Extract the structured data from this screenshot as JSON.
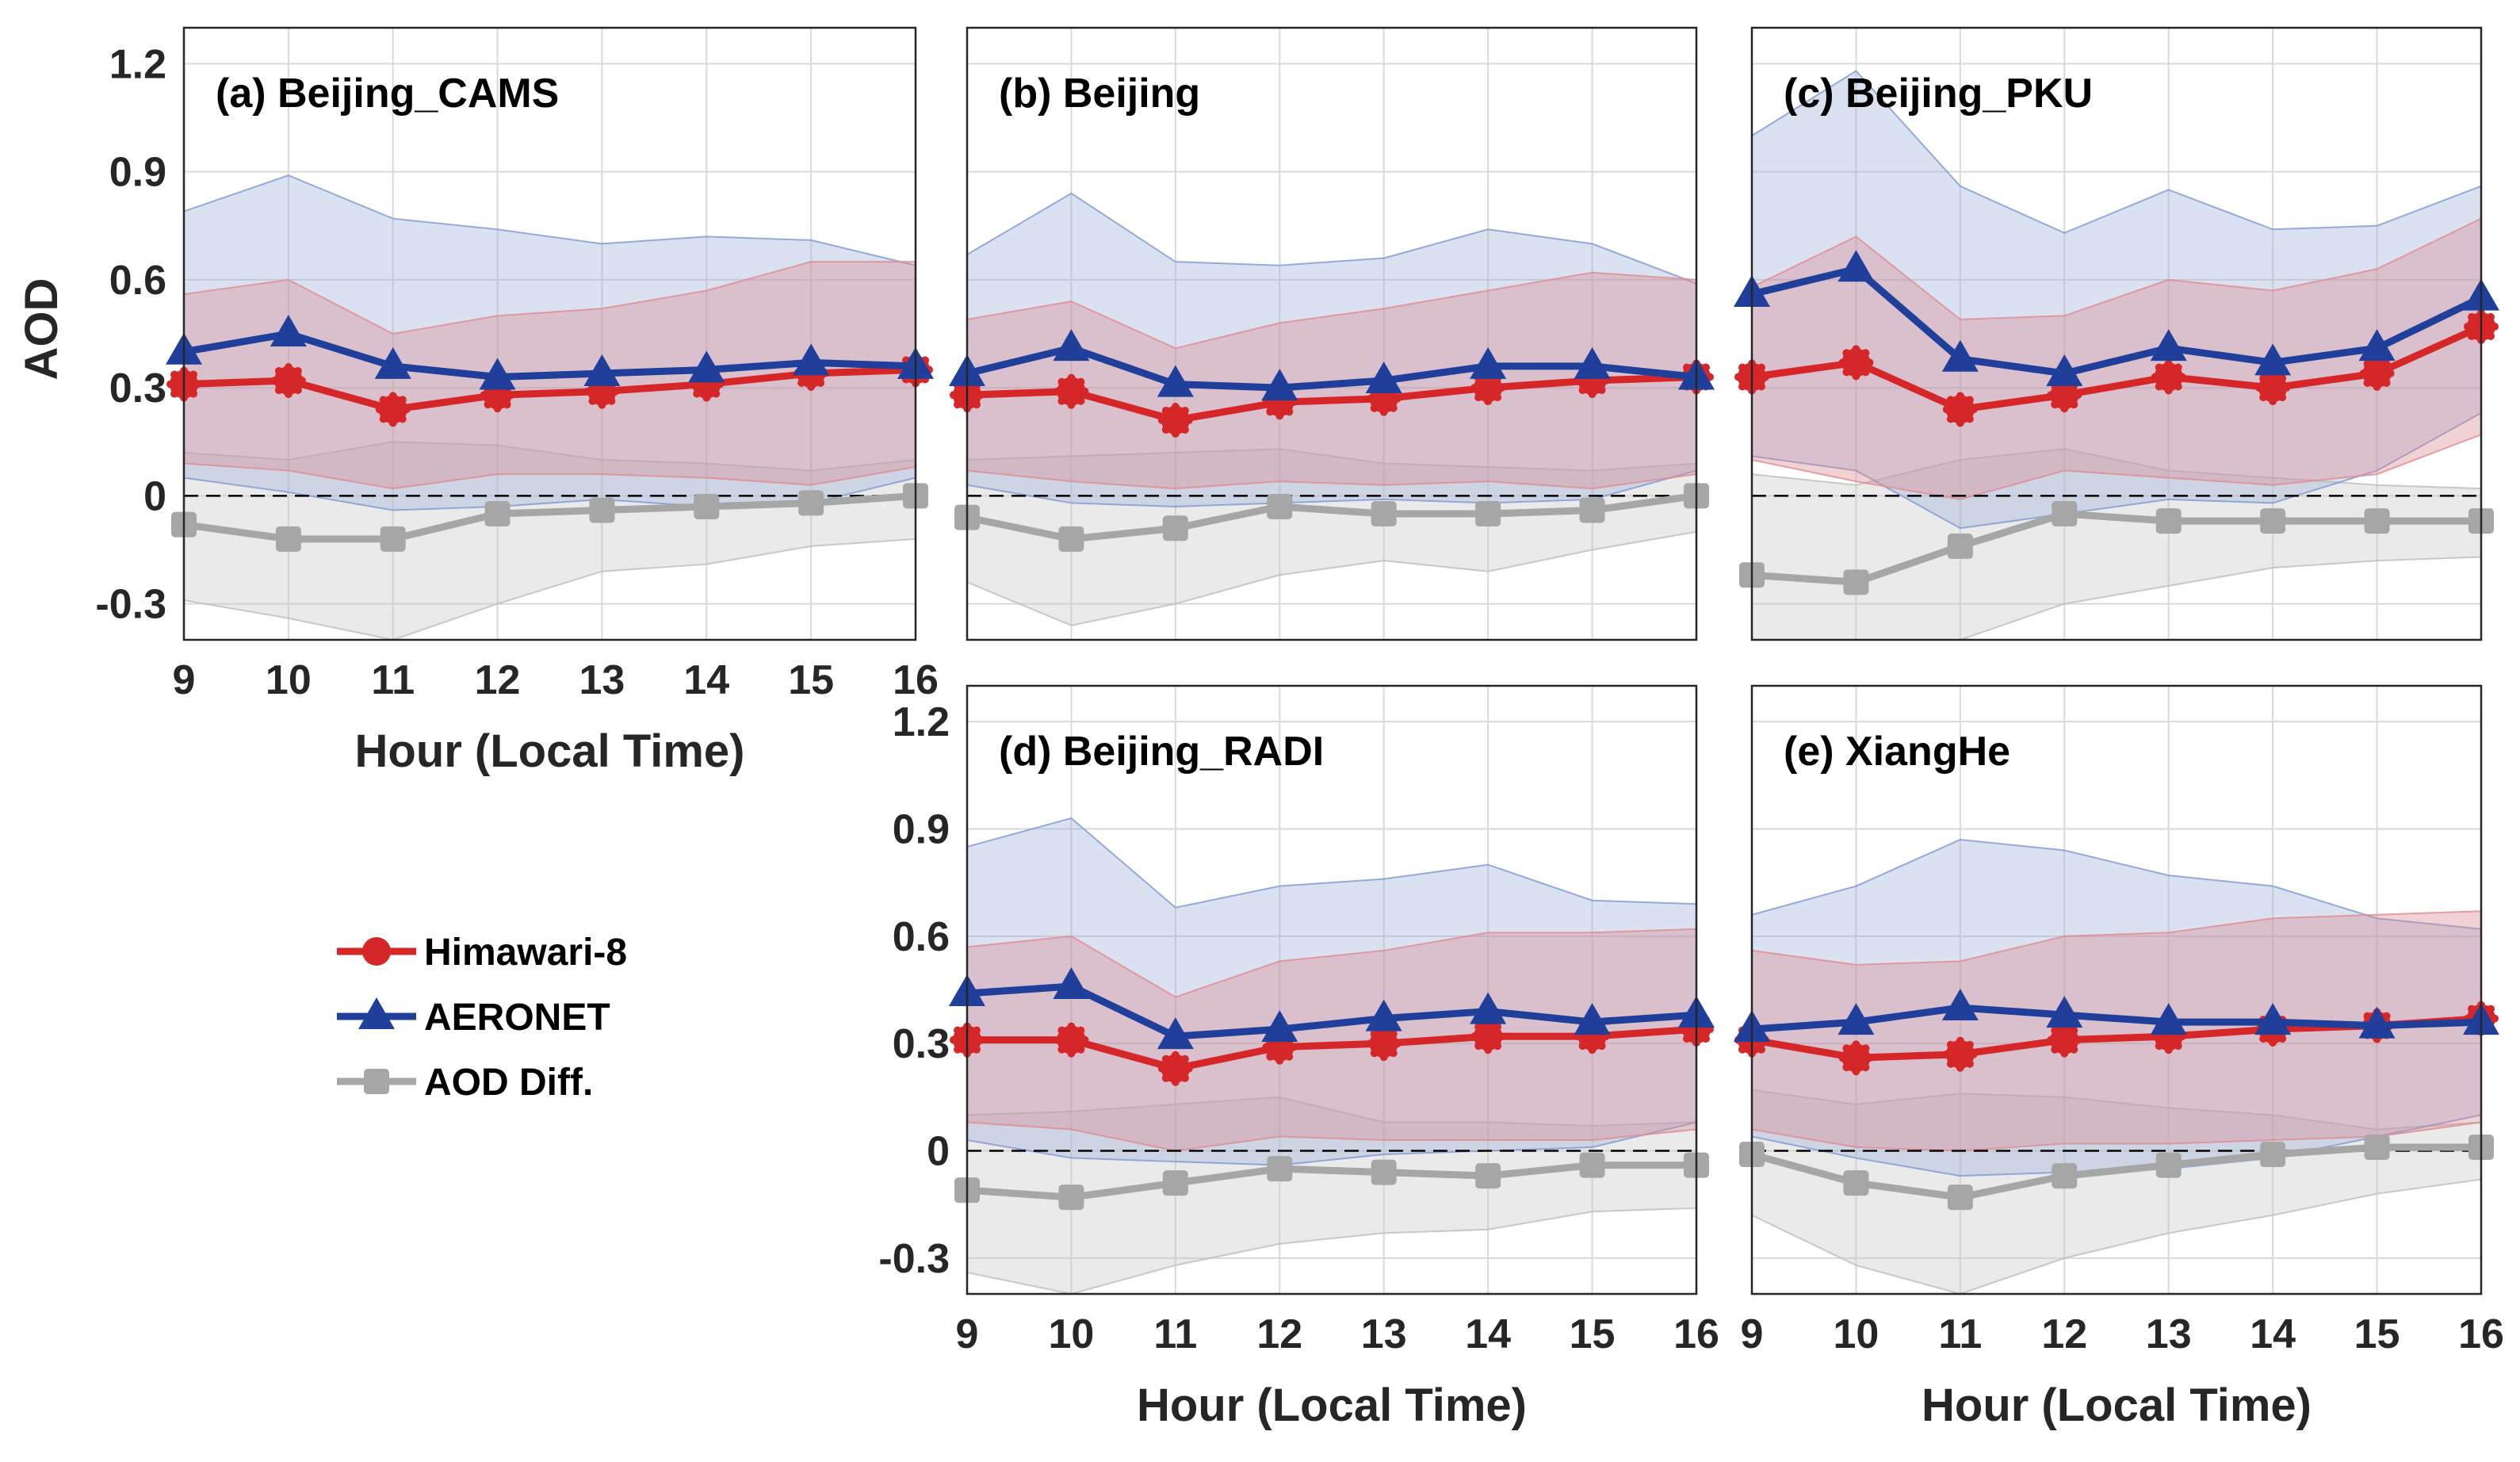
{
  "chart_data": {
    "type": "line",
    "x": [
      9,
      10,
      11,
      12,
      13,
      14,
      15,
      16
    ],
    "xlabel": "Hour (Local Time)",
    "ylabel": "AOD",
    "ylim": [
      -0.4,
      1.3
    ],
    "xlim": [
      9,
      16
    ],
    "xticks": [
      "9",
      "10",
      "11",
      "12",
      "13",
      "14",
      "15",
      "16"
    ],
    "yticks": [
      {
        "value": -0.3,
        "label": "-0.3"
      },
      {
        "value": 0,
        "label": "0"
      },
      {
        "value": 0.3,
        "label": "0.3"
      },
      {
        "value": 0.6,
        "label": "0.6"
      },
      {
        "value": 0.9,
        "label": "0.9"
      },
      {
        "value": 1.2,
        "label": "1.2"
      }
    ],
    "grid": true,
    "reference_line": {
      "y": 0,
      "style": "dashed"
    },
    "colors": {
      "himawari": "#d62728",
      "aeronet": "#1f3f9a",
      "diff": "#a6a6a6",
      "band_himawari": "#d98a8f",
      "band_aeronet": "#9fb3dc",
      "band_diff": "#c8c8c8"
    },
    "legend": [
      {
        "key": "himawari",
        "label": "Himawari-8",
        "marker": "circle"
      },
      {
        "key": "aeronet",
        "label": "AERONET",
        "marker": "triangle"
      },
      {
        "key": "diff",
        "label": "AOD Diff.",
        "marker": "square"
      }
    ],
    "panels": [
      {
        "title": "(a) Beijing_CAMS",
        "himawari": [
          0.31,
          0.32,
          0.24,
          0.28,
          0.29,
          0.31,
          0.34,
          0.35
        ],
        "aeronet": [
          0.4,
          0.45,
          0.36,
          0.33,
          0.34,
          0.35,
          0.37,
          0.36
        ],
        "diff": [
          -0.08,
          -0.12,
          -0.12,
          -0.05,
          -0.04,
          -0.03,
          -0.02,
          0.0
        ],
        "band_himawari": {
          "upper": [
            0.56,
            0.6,
            0.45,
            0.5,
            0.52,
            0.57,
            0.65,
            0.65
          ],
          "lower": [
            0.09,
            0.07,
            0.02,
            0.06,
            0.06,
            0.05,
            0.03,
            0.08
          ]
        },
        "band_aeronet": {
          "upper": [
            0.79,
            0.89,
            0.77,
            0.74,
            0.7,
            0.72,
            0.71,
            0.64
          ],
          "lower": [
            0.05,
            0.01,
            -0.04,
            -0.03,
            -0.01,
            -0.03,
            -0.02,
            0.05
          ]
        },
        "band_diff": {
          "upper": [
            0.12,
            0.1,
            0.15,
            0.14,
            0.1,
            0.09,
            0.07,
            0.1
          ],
          "lower": [
            -0.29,
            -0.34,
            -0.4,
            -0.3,
            -0.21,
            -0.19,
            -0.14,
            -0.12
          ]
        }
      },
      {
        "title": "(b) Beijing",
        "himawari": [
          0.28,
          0.29,
          0.21,
          0.26,
          0.27,
          0.3,
          0.32,
          0.33
        ],
        "aeronet": [
          0.34,
          0.41,
          0.31,
          0.3,
          0.32,
          0.36,
          0.36,
          0.33
        ],
        "diff": [
          -0.06,
          -0.12,
          -0.09,
          -0.03,
          -0.05,
          -0.05,
          -0.04,
          0.0
        ],
        "band_himawari": {
          "upper": [
            0.49,
            0.54,
            0.41,
            0.48,
            0.52,
            0.57,
            0.62,
            0.6
          ],
          "lower": [
            0.07,
            0.04,
            0.02,
            0.04,
            0.03,
            0.04,
            0.02,
            0.06
          ]
        },
        "band_aeronet": {
          "upper": [
            0.67,
            0.84,
            0.65,
            0.64,
            0.66,
            0.74,
            0.7,
            0.59
          ],
          "lower": [
            0.03,
            -0.02,
            -0.03,
            -0.02,
            -0.01,
            -0.02,
            -0.01,
            0.07
          ]
        },
        "band_diff": {
          "upper": [
            0.1,
            0.11,
            0.12,
            0.13,
            0.09,
            0.08,
            0.07,
            0.09
          ],
          "lower": [
            -0.24,
            -0.36,
            -0.3,
            -0.22,
            -0.18,
            -0.21,
            -0.15,
            -0.1
          ]
        }
      },
      {
        "title": "(c) Beijing_PKU",
        "himawari": [
          0.33,
          0.37,
          0.24,
          0.28,
          0.33,
          0.3,
          0.34,
          0.47
        ],
        "aeronet": [
          0.56,
          0.63,
          0.38,
          0.34,
          0.41,
          0.37,
          0.41,
          0.55
        ],
        "diff": [
          -0.22,
          -0.24,
          -0.14,
          -0.05,
          -0.07,
          -0.07,
          -0.07,
          -0.07
        ],
        "band_himawari": {
          "upper": [
            0.58,
            0.72,
            0.49,
            0.5,
            0.6,
            0.57,
            0.63,
            0.77
          ],
          "lower": [
            0.1,
            0.04,
            -0.01,
            0.07,
            0.05,
            0.03,
            0.06,
            0.17
          ]
        },
        "band_aeronet": {
          "upper": [
            1.0,
            1.18,
            0.86,
            0.73,
            0.85,
            0.74,
            0.75,
            0.86
          ],
          "lower": [
            0.11,
            0.07,
            -0.09,
            -0.05,
            -0.01,
            -0.02,
            0.07,
            0.23
          ]
        },
        "band_diff": {
          "upper": [
            0.06,
            0.03,
            0.1,
            0.13,
            0.07,
            0.05,
            0.03,
            0.02
          ],
          "lower": [
            -0.4,
            -0.4,
            -0.4,
            -0.3,
            -0.25,
            -0.2,
            -0.18,
            -0.17
          ]
        }
      },
      {
        "title": "(d) Beijing_RADI",
        "himawari": [
          0.31,
          0.31,
          0.23,
          0.29,
          0.3,
          0.32,
          0.32,
          0.34
        ],
        "aeronet": [
          0.44,
          0.46,
          0.32,
          0.34,
          0.37,
          0.39,
          0.36,
          0.38
        ],
        "diff": [
          -0.11,
          -0.13,
          -0.09,
          -0.05,
          -0.06,
          -0.07,
          -0.04,
          -0.04
        ],
        "band_himawari": {
          "upper": [
            0.57,
            0.6,
            0.43,
            0.53,
            0.56,
            0.61,
            0.61,
            0.62
          ],
          "lower": [
            0.08,
            0.06,
            0.0,
            0.04,
            0.03,
            0.03,
            0.03,
            0.06
          ]
        },
        "band_aeronet": {
          "upper": [
            0.85,
            0.93,
            0.68,
            0.74,
            0.76,
            0.8,
            0.7,
            0.69
          ],
          "lower": [
            0.03,
            -0.02,
            -0.03,
            -0.04,
            -0.01,
            0.0,
            0.01,
            0.08
          ]
        },
        "band_diff": {
          "upper": [
            0.1,
            0.11,
            0.13,
            0.15,
            0.08,
            0.08,
            0.07,
            0.08
          ],
          "lower": [
            -0.34,
            -0.4,
            -0.32,
            -0.26,
            -0.23,
            -0.22,
            -0.17,
            -0.16
          ]
        }
      },
      {
        "title": "(e) XiangHe",
        "himawari": [
          0.31,
          0.26,
          0.27,
          0.31,
          0.32,
          0.34,
          0.35,
          0.37
        ],
        "aeronet": [
          0.34,
          0.36,
          0.4,
          0.38,
          0.36,
          0.36,
          0.35,
          0.36
        ],
        "diff": [
          -0.01,
          -0.09,
          -0.13,
          -0.07,
          -0.04,
          -0.01,
          0.01,
          0.01
        ],
        "band_himawari": {
          "upper": [
            0.56,
            0.52,
            0.53,
            0.6,
            0.61,
            0.65,
            0.66,
            0.67
          ],
          "lower": [
            0.06,
            0.01,
            0.0,
            0.02,
            0.02,
            0.03,
            0.04,
            0.08
          ]
        },
        "band_aeronet": {
          "upper": [
            0.66,
            0.74,
            0.87,
            0.84,
            0.77,
            0.74,
            0.65,
            0.62
          ],
          "lower": [
            0.04,
            -0.02,
            -0.07,
            -0.06,
            -0.05,
            -0.02,
            0.04,
            0.1
          ]
        },
        "band_diff": {
          "upper": [
            0.17,
            0.13,
            0.16,
            0.15,
            0.12,
            0.1,
            0.06,
            0.08
          ],
          "lower": [
            -0.18,
            -0.32,
            -0.4,
            -0.3,
            -0.23,
            -0.18,
            -0.12,
            -0.08
          ]
        }
      }
    ]
  }
}
